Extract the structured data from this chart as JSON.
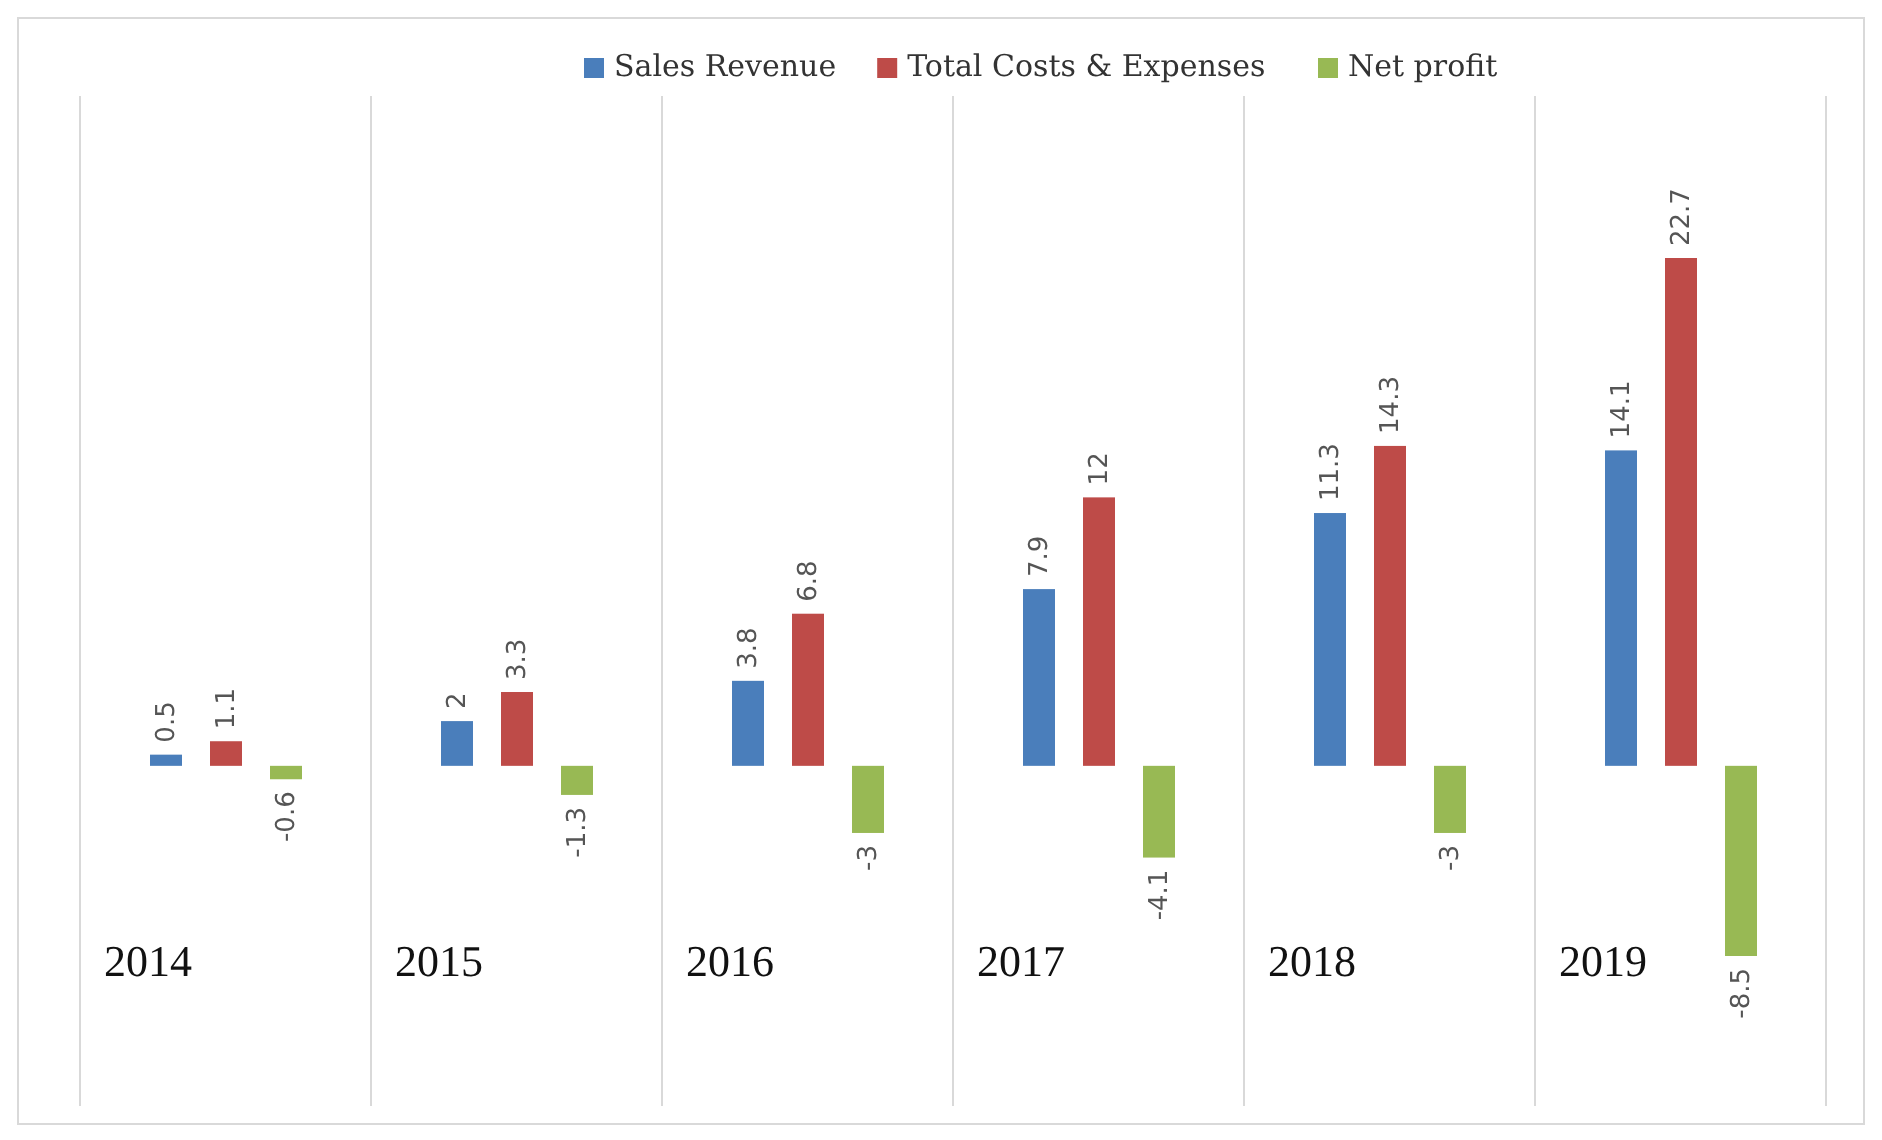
{
  "chart_data": {
    "type": "bar",
    "categories": [
      "2014",
      "2015",
      "2016",
      "2017",
      "2018",
      "2019"
    ],
    "series": [
      {
        "name": "Sales Revenue",
        "color": "#4a7ebb",
        "values": [
          0.5,
          2,
          3.8,
          7.9,
          11.3,
          14.1
        ]
      },
      {
        "name": "Total Costs & Expenses",
        "color": "#be4b48",
        "values": [
          1.1,
          3.3,
          6.8,
          12,
          14.3,
          22.7
        ]
      },
      {
        "name": "Net profit",
        "color": "#98b954",
        "values": [
          -0.6,
          -1.3,
          -3,
          -4.1,
          -3,
          -8.5
        ]
      }
    ],
    "tick_labels": "x",
    "grid": "x",
    "legend": "top",
    "data_labels": true
  }
}
